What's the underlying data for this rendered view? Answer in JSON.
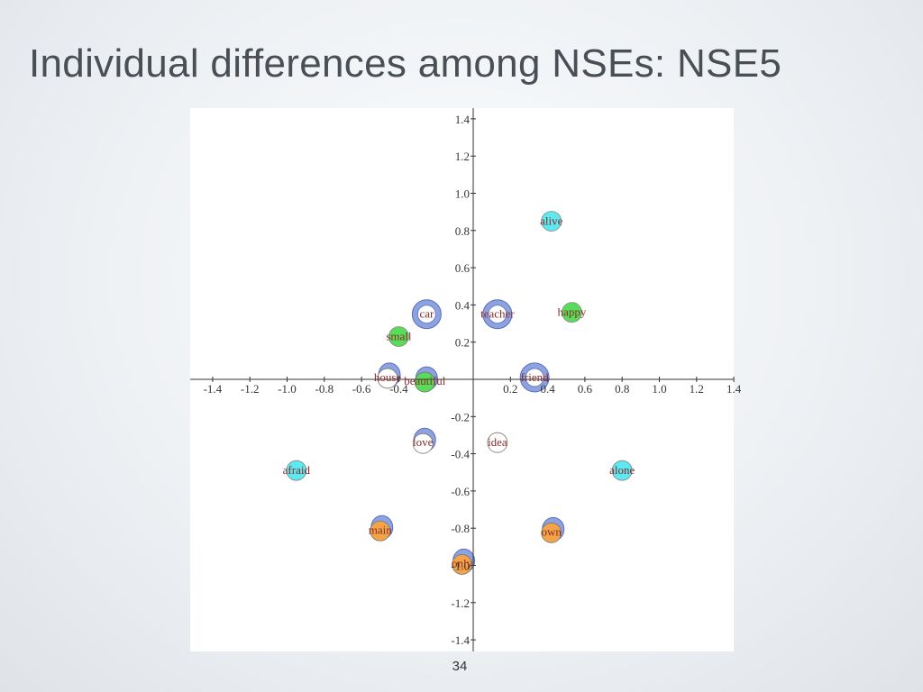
{
  "slide": {
    "title": "Individual differences among NSEs: NSE5",
    "page_number": "34"
  },
  "colors": {
    "axis": "#333333",
    "blue_ring": "#8ca3e0",
    "blue_ring_stroke": "#5a6ec0",
    "cyan": "#5ee8f0",
    "green": "#59dc59",
    "orange": "#f3a448",
    "label": "#8a2a2a"
  },
  "chart_data": {
    "type": "scatter",
    "title": "",
    "xlabel": "",
    "ylabel": "",
    "xlim": [
      -1.5,
      1.5
    ],
    "ylim": [
      -1.5,
      1.5
    ],
    "grid": false,
    "x_ticks": [
      "-1.4",
      "-1.2",
      "-1.0",
      "-0.8",
      "-0.6",
      "-0.4",
      "0.2",
      "0.4",
      "0.6",
      "0.8",
      "1.0",
      "1.2",
      "1.4"
    ],
    "y_ticks": [
      "1.4",
      "1.2",
      "1.0",
      "0.8",
      "0.6",
      "0.4",
      "0.2",
      "-0.2",
      "-0.4",
      "-0.6",
      "-0.8",
      "-1.0",
      "-1.2",
      "-1.4"
    ],
    "points": [
      {
        "label": "alive",
        "x": 0.42,
        "y": 0.85,
        "fill": "cyan"
      },
      {
        "label": "car",
        "x": -0.25,
        "y": 0.35,
        "fill": "white",
        "ring": "full"
      },
      {
        "label": "teacher",
        "x": 0.13,
        "y": 0.35,
        "fill": "white",
        "ring": "full"
      },
      {
        "label": "happy",
        "x": 0.53,
        "y": 0.36,
        "fill": "green"
      },
      {
        "label": "small",
        "x": -0.4,
        "y": 0.23,
        "fill": "green"
      },
      {
        "label": "house",
        "x": -0.46,
        "y": 0.01,
        "fill": "white",
        "ring": "partial"
      },
      {
        "label": "beautiful",
        "x": -0.26,
        "y": -0.01,
        "fill": "green",
        "ring": "partial"
      },
      {
        "label": "friend",
        "x": 0.33,
        "y": 0.01,
        "fill": "white",
        "ring": "full"
      },
      {
        "label": "love",
        "x": -0.27,
        "y": -0.34,
        "fill": "white",
        "ring": "partial"
      },
      {
        "label": "idea",
        "x": 0.13,
        "y": -0.34,
        "fill": "white"
      },
      {
        "label": "afraid",
        "x": -0.95,
        "y": -0.49,
        "fill": "cyan"
      },
      {
        "label": "alone",
        "x": 0.8,
        "y": -0.49,
        "fill": "cyan"
      },
      {
        "label": "main",
        "x": -0.5,
        "y": -0.81,
        "fill": "orange",
        "ring": "partial"
      },
      {
        "label": "own",
        "x": 0.42,
        "y": -0.82,
        "fill": "orange",
        "ring": "partial"
      },
      {
        "label": "only",
        "x": -0.06,
        "y": -0.99,
        "fill": "orange",
        "ring": "partial"
      }
    ]
  }
}
